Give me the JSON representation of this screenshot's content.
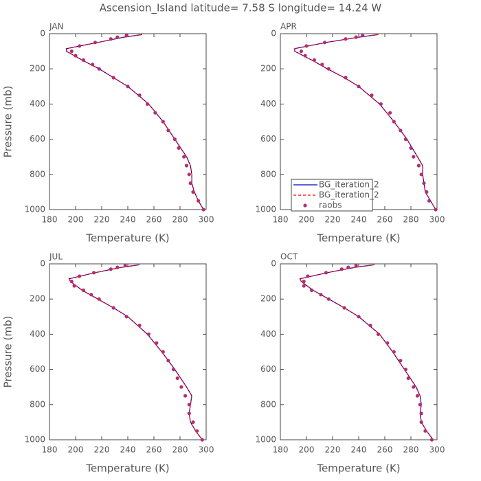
{
  "title": "Ascension_Island  latitude= 7.58 S longitude= 14.24 W",
  "chart_data": [
    {
      "type": "line",
      "title": "JAN",
      "xlabel": "Temperature (K)",
      "ylabel": "Pressure (mb)",
      "xlim": [
        180,
        300
      ],
      "ylim": [
        1000,
        0
      ],
      "xticks": [
        180,
        200,
        220,
        240,
        260,
        280,
        300
      ],
      "yticks": [
        0,
        200,
        400,
        600,
        800,
        1000
      ],
      "series": [
        {
          "name": "BG_iteration_2",
          "color": "#0000c0",
          "mode": "line",
          "x": [
            251,
            237,
            217,
            193,
            193,
            205,
            218,
            229,
            240,
            256,
            267,
            276,
            285,
            288,
            289,
            289,
            291,
            294,
            298
          ],
          "values": [
            5,
            20,
            50,
            85,
            100,
            150,
            200,
            250,
            300,
            400,
            500,
            600,
            700,
            750,
            800,
            850,
            900,
            950,
            1000
          ]
        },
        {
          "name": "BG_iteration_2",
          "color": "#ff0000",
          "mode": "dashed",
          "x": [
            251,
            237,
            217,
            193,
            193,
            205,
            218,
            229,
            240,
            256,
            267,
            276,
            285,
            288,
            289,
            289,
            291,
            294,
            298
          ],
          "values": [
            5,
            20,
            50,
            85,
            100,
            150,
            200,
            250,
            300,
            400,
            500,
            600,
            700,
            750,
            800,
            850,
            900,
            950,
            1000
          ]
        },
        {
          "name": "raobs",
          "color": "#b03070",
          "mode": "markers",
          "x": [
            239,
            232,
            227,
            215,
            203,
            197,
            200,
            206,
            213,
            218,
            229,
            240,
            249,
            255,
            261,
            267,
            271,
            276,
            279,
            283,
            285,
            287,
            288,
            290,
            294,
            298
          ],
          "values": [
            10,
            20,
            30,
            50,
            70,
            100,
            125,
            150,
            175,
            200,
            250,
            300,
            350,
            400,
            450,
            500,
            550,
            600,
            650,
            700,
            750,
            800,
            850,
            900,
            950,
            1000
          ]
        }
      ]
    },
    {
      "type": "line",
      "title": "APR",
      "xlabel": "Temperature (K)",
      "legend": "lower-left",
      "xlim": [
        180,
        300
      ],
      "ylim": [
        1000,
        0
      ],
      "xticks": [
        180,
        200,
        220,
        240,
        260,
        280,
        300
      ],
      "yticks": [
        0,
        200,
        400,
        600,
        800,
        1000
      ],
      "series": [
        {
          "name": "BG_iteration_2",
          "color": "#0000c0",
          "mode": "line",
          "x": [
            255,
            240,
            215,
            191,
            191,
            204,
            216,
            229,
            240,
            256,
            267,
            277,
            285,
            289,
            289,
            290,
            291,
            295,
            299
          ],
          "values": [
            5,
            20,
            50,
            85,
            100,
            150,
            200,
            250,
            300,
            400,
            500,
            600,
            700,
            750,
            800,
            850,
            900,
            950,
            1000
          ]
        },
        {
          "name": "BG_iteration_2",
          "color": "#ff0000",
          "mode": "dashed",
          "x": [
            255,
            240,
            215,
            191,
            191,
            204,
            216,
            229,
            240,
            256,
            267,
            277,
            285,
            289,
            289,
            290,
            291,
            295,
            299
          ],
          "values": [
            5,
            20,
            50,
            85,
            100,
            150,
            200,
            250,
            300,
            400,
            500,
            600,
            700,
            750,
            800,
            850,
            900,
            950,
            1000
          ]
        },
        {
          "name": "raobs",
          "color": "#b03070",
          "mode": "markers",
          "x": [
            243,
            238,
            230,
            214,
            200,
            196,
            199,
            206,
            212,
            217,
            230,
            240,
            250,
            257,
            264,
            267,
            272,
            276,
            280,
            282,
            286,
            288,
            290,
            292,
            294,
            299
          ],
          "values": [
            10,
            20,
            30,
            50,
            70,
            100,
            125,
            150,
            175,
            200,
            250,
            300,
            350,
            400,
            450,
            500,
            550,
            600,
            650,
            700,
            750,
            800,
            850,
            900,
            950,
            1000
          ]
        }
      ]
    },
    {
      "type": "line",
      "title": "JUL",
      "xlabel": "Temperature (K)",
      "ylabel": "Pressure (mb)",
      "xlim": [
        180,
        300
      ],
      "ylim": [
        1000,
        0
      ],
      "xticks": [
        180,
        200,
        220,
        240,
        260,
        280,
        300
      ],
      "yticks": [
        0,
        200,
        400,
        600,
        800,
        1000
      ],
      "series": [
        {
          "name": "BG_iteration_2",
          "color": "#0000c0",
          "mode": "line",
          "x": [
            249,
            235,
            215,
            195,
            196,
            205,
            217,
            229,
            240,
            255,
            266,
            276,
            285,
            289,
            288,
            287,
            288,
            292,
            297
          ],
          "values": [
            5,
            20,
            50,
            85,
            100,
            150,
            200,
            250,
            300,
            400,
            500,
            600,
            700,
            750,
            800,
            850,
            900,
            950,
            1000
          ]
        },
        {
          "name": "BG_iteration_2",
          "color": "#ff0000",
          "mode": "dashed",
          "x": [
            249,
            235,
            215,
            195,
            196,
            205,
            217,
            229,
            240,
            255,
            266,
            276,
            285,
            289,
            288,
            287,
            288,
            292,
            297
          ],
          "values": [
            5,
            20,
            50,
            85,
            100,
            150,
            200,
            250,
            300,
            400,
            500,
            600,
            700,
            750,
            800,
            850,
            900,
            950,
            1000
          ]
        },
        {
          "name": "raobs",
          "color": "#b03070",
          "mode": "markers",
          "x": [
            238,
            232,
            227,
            214,
            203,
            197,
            199,
            206,
            212,
            218,
            229,
            239,
            249,
            256,
            262,
            267,
            271,
            275,
            278,
            281,
            284,
            287,
            287,
            290,
            293,
            297
          ],
          "values": [
            10,
            20,
            30,
            50,
            70,
            100,
            125,
            150,
            175,
            200,
            250,
            300,
            350,
            400,
            450,
            500,
            550,
            600,
            650,
            700,
            750,
            800,
            850,
            900,
            950,
            1000
          ]
        }
      ]
    },
    {
      "type": "line",
      "title": "OCT",
      "xlabel": "Temperature (K)",
      "xlim": [
        180,
        300
      ],
      "ylim": [
        1000,
        0
      ],
      "xticks": [
        180,
        200,
        220,
        240,
        260,
        280,
        300
      ],
      "yticks": [
        0,
        200,
        400,
        600,
        800,
        1000
      ],
      "series": [
        {
          "name": "BG_iteration_2",
          "color": "#0000c0",
          "mode": "line",
          "x": [
            252,
            237,
            216,
            195,
            196,
            205,
            217,
            229,
            240,
            256,
            266,
            275,
            284,
            287,
            288,
            287,
            288,
            292,
            297
          ],
          "values": [
            5,
            20,
            50,
            85,
            100,
            150,
            200,
            250,
            300,
            400,
            500,
            600,
            700,
            750,
            800,
            850,
            900,
            950,
            1000
          ]
        },
        {
          "name": "BG_iteration_2",
          "color": "#ff0000",
          "mode": "dashed",
          "x": [
            252,
            237,
            216,
            195,
            196,
            205,
            217,
            229,
            240,
            256,
            266,
            275,
            284,
            287,
            288,
            287,
            288,
            292,
            297
          ],
          "values": [
            5,
            20,
            50,
            85,
            100,
            150,
            200,
            250,
            300,
            400,
            500,
            600,
            700,
            750,
            800,
            850,
            900,
            950,
            1000
          ]
        },
        {
          "name": "raobs",
          "color": "#b03070",
          "mode": "markers",
          "x": [
            238,
            232,
            227,
            215,
            201,
            198,
            198,
            204,
            211,
            217,
            229,
            240,
            249,
            255,
            262,
            267,
            272,
            276,
            278,
            282,
            285,
            287,
            288,
            288,
            291,
            296
          ],
          "values": [
            10,
            20,
            30,
            50,
            70,
            100,
            125,
            150,
            175,
            200,
            250,
            300,
            350,
            400,
            450,
            500,
            550,
            600,
            650,
            700,
            750,
            800,
            850,
            900,
            950,
            1000
          ]
        }
      ]
    }
  ]
}
